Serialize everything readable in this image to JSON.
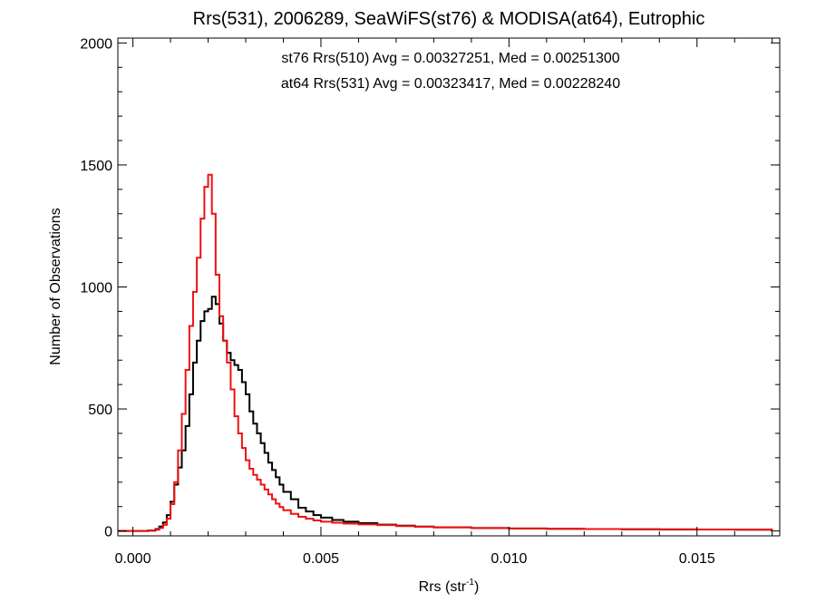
{
  "chart_data": {
    "type": "line",
    "title": "Rrs(531), 2006289, SeaWiFS(st76) & MODISA(at64), Eutrophic",
    "xlabel": "Rrs (str",
    "xlabel_sup": "-1",
    "xlabel_end": ")",
    "ylabel": "Number of Observations",
    "xlim": [
      -0.0004,
      0.0172
    ],
    "ylim": [
      -20,
      2020
    ],
    "xticks": [
      0.0,
      0.005,
      0.01,
      0.015
    ],
    "xtick_labels": [
      "0.000",
      "0.005",
      "0.010",
      "0.015"
    ],
    "yticks": [
      0,
      500,
      1000,
      1500,
      2000
    ],
    "ytick_labels": [
      "0",
      "500",
      "1000",
      "1500",
      "2000"
    ],
    "grid": false,
    "legend_position": "top-center",
    "series": [
      {
        "name": "st76 Rrs(510) Avg = 0.00327251, Med = 0.00251300",
        "color": "#000000",
        "x": [
          -0.0004,
          0.0,
          0.0004,
          0.0006,
          0.0007,
          0.0008,
          0.0009,
          0.001,
          0.0011,
          0.0012,
          0.0013,
          0.0014,
          0.0015,
          0.0016,
          0.0017,
          0.0018,
          0.0019,
          0.002,
          0.0021,
          0.0022,
          0.0023,
          0.0024,
          0.0025,
          0.0026,
          0.0027,
          0.0028,
          0.0029,
          0.003,
          0.0031,
          0.0032,
          0.0033,
          0.0034,
          0.0035,
          0.0036,
          0.0037,
          0.0038,
          0.0039,
          0.004,
          0.0042,
          0.0044,
          0.0046,
          0.0048,
          0.005,
          0.0053,
          0.0056,
          0.006,
          0.0065,
          0.007,
          0.0075,
          0.008,
          0.009,
          0.01,
          0.011,
          0.012,
          0.013,
          0.014,
          0.015,
          0.016,
          0.017
        ],
        "y": [
          0,
          0,
          2,
          8,
          18,
          35,
          65,
          120,
          190,
          260,
          330,
          430,
          560,
          690,
          780,
          860,
          900,
          910,
          960,
          930,
          850,
          780,
          730,
          700,
          680,
          660,
          610,
          560,
          490,
          440,
          400,
          360,
          320,
          280,
          250,
          220,
          190,
          160,
          130,
          95,
          80,
          65,
          55,
          45,
          38,
          32,
          26,
          22,
          18,
          15,
          12,
          10,
          9,
          8,
          7,
          6,
          6,
          5,
          5
        ]
      },
      {
        "name": "at64 Rrs(531) Avg = 0.00323417, Med = 0.00228240",
        "color": "#ee1111",
        "x": [
          -0.0004,
          0.0,
          0.0004,
          0.0006,
          0.0007,
          0.0008,
          0.0009,
          0.001,
          0.0011,
          0.0012,
          0.0013,
          0.0014,
          0.0015,
          0.0016,
          0.0017,
          0.0018,
          0.0019,
          0.002,
          0.0021,
          0.0022,
          0.0023,
          0.0024,
          0.0025,
          0.0026,
          0.0027,
          0.0028,
          0.0029,
          0.003,
          0.0031,
          0.0032,
          0.0033,
          0.0034,
          0.0035,
          0.0036,
          0.0037,
          0.0038,
          0.0039,
          0.004,
          0.0042,
          0.0044,
          0.0046,
          0.0048,
          0.005,
          0.0053,
          0.0056,
          0.006,
          0.0065,
          0.007,
          0.0075,
          0.008,
          0.009,
          0.01,
          0.011,
          0.012,
          0.013,
          0.014,
          0.015,
          0.016,
          0.017
        ],
        "y": [
          0,
          0,
          1,
          5,
          12,
          25,
          50,
          110,
          200,
          330,
          480,
          660,
          840,
          980,
          1120,
          1280,
          1410,
          1460,
          1300,
          1050,
          880,
          780,
          690,
          580,
          470,
          400,
          340,
          290,
          255,
          230,
          210,
          190,
          170,
          150,
          130,
          112,
          98,
          85,
          70,
          58,
          50,
          43,
          38,
          34,
          30,
          27,
          24,
          20,
          17,
          15,
          12,
          10,
          9,
          8,
          7,
          7,
          6,
          6,
          5
        ]
      }
    ]
  }
}
